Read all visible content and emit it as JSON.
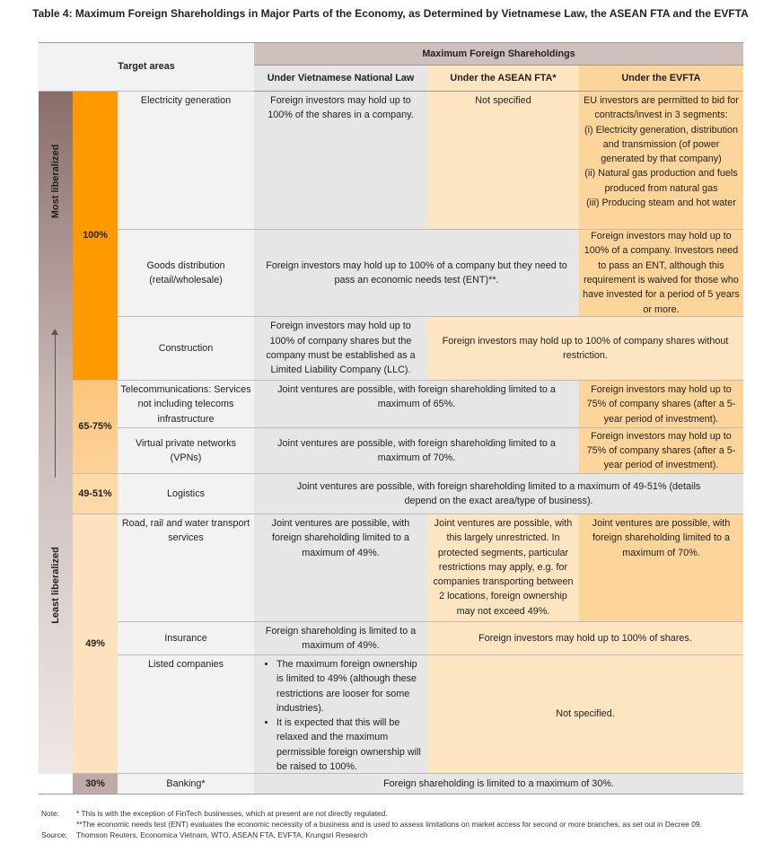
{
  "title": "Table 4: Maximum Foreign Shareholdings in Major Parts of the Economy, as Determined by Vietnamese Law, the ASEAN FTA and the EVFTA",
  "header": {
    "target_areas": "Target areas",
    "max_group": "Maximum Foreign Shareholdings",
    "col_law": "Under Vietnamese National Law",
    "col_asean": "Under the ASEAN FTA*",
    "col_evfta": "Under the EVFTA"
  },
  "side": {
    "top": "Most liberalized",
    "bottom": "Least liberalized"
  },
  "levels": {
    "l100": "100%",
    "l6575": "65-75%",
    "l4951": "49-51%",
    "l49": "49%",
    "l30": "30%"
  },
  "level_colors": {
    "l100": "#ff9900",
    "l6575": "#fbc77e",
    "l4951": "#fddcaa",
    "l49": "#fde3bd",
    "l30": "#bfaaa8"
  },
  "rows": {
    "electricity": {
      "area": "Electricity generation",
      "law": "Foreign investors may hold up to 100% of the shares in a company.",
      "asean": "Not specified",
      "evfta": [
        "EU investors are permitted to bid for contracts/invest in 3 segments:",
        "(i) Electricity generation, distribution and transmission (of power generated by that company)",
        "(ii) Natural gas production and fuels produced from natural gas",
        "(iii) Producing steam and hot water"
      ]
    },
    "goods": {
      "area": "Goods distribution (retail/wholesale)",
      "law_asean": "Foreign investors may hold up to 100% of a company but they need to pass an economic needs test (ENT)**.",
      "evfta": "Foreign investors may hold up to 100% of a company. Investors need to pass an ENT, although this requirement is waived for those who have invested for a period of 5 years or more."
    },
    "construction": {
      "area": "Construction",
      "law": "Foreign investors may hold up to 100% of company shares but the company must be established as a Limited Liability Company (LLC).",
      "asean_evfta": "Foreign investors may hold up to 100% of company shares without restriction."
    },
    "telecom": {
      "area": "Telecommunications: Services not including telecoms infrastructure",
      "law_asean": "Joint ventures are possible, with foreign shareholding limited to a maximum of 65%.",
      "evfta": "Foreign investors may hold up to 75% of company shares (after a 5-year period of investment)."
    },
    "vpn": {
      "area": "Virtual private networks (VPNs)",
      "law_asean": "Joint ventures are possible, with foreign shareholding limited to a maximum of 70%.",
      "evfta": "Foreign investors may hold up to 75% of company shares (after a 5-year period of investment)."
    },
    "logistics": {
      "area": "Logistics",
      "all": "Joint ventures are possible, with foreign shareholding limited to a maximum of 49-51% (details depend on the exact area/type of business)."
    },
    "transport": {
      "area": "Road, rail and water transport services",
      "law": "Joint ventures are possible, with foreign shareholding limited to a maximum of 49%.",
      "asean": "Joint ventures are possible, with this largely unrestricted. In protected segments, particular restrictions may apply, e.g. for companies transporting between 2 locations, foreign ownership may not exceed 49%.",
      "evfta": "Joint ventures are possible, with foreign shareholding limited to a maximum of 70%."
    },
    "insurance": {
      "area": "Insurance",
      "law": "Foreign shareholding is limited to a maximum of 49%.",
      "asean_evfta": "Foreign investors may hold up to 100% of shares."
    },
    "listed": {
      "area": "Listed companies",
      "law": [
        "The maximum foreign ownership is limited to 49% (although these restrictions are looser for some industries).",
        "It is expected that this will be relaxed and the maximum permissible foreign ownership will be raised to 100%."
      ],
      "asean_evfta": "Not specified."
    },
    "banking": {
      "area": "Banking*",
      "all": "Foreign shareholding is limited to a maximum of 30%."
    }
  },
  "notes": {
    "note_label": "Note:",
    "note1": "* This is with the exception of FinTech businesses, which at present are not directly regulated.",
    "note2": "**The economic needs test (ENT) evaluates the economic necessity of a business and is used to assess limitations on market access for second or more branches, as set out in Decree 09.",
    "source_label": "Source:",
    "source": "Thomson Reuters, Economica Vietnam, WTO, ASEAN FTA, EVFTA, Krungsri Research"
  }
}
